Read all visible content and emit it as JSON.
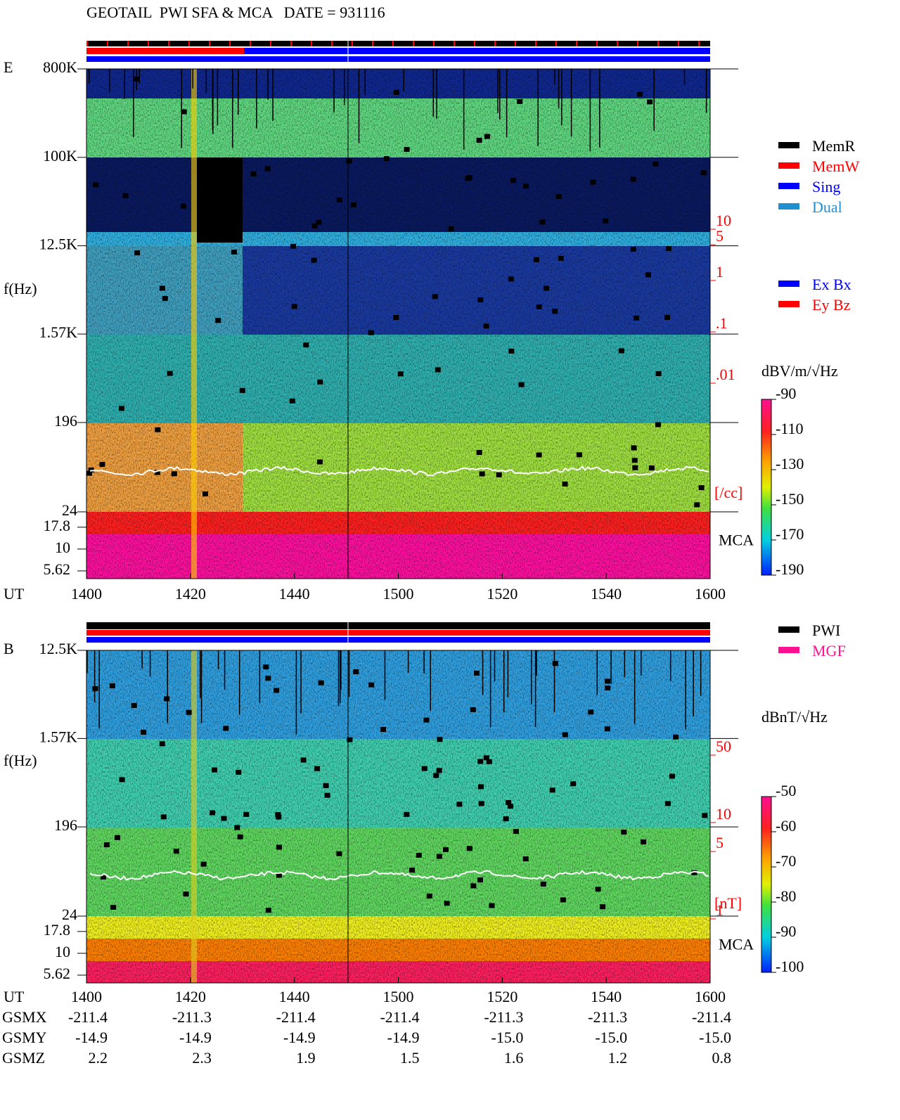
{
  "chart_data": [
    {
      "type": "spectrogram",
      "title": "GEOTAIL  PWI SFA & MCA   DATE = 931116",
      "panel_label": "E",
      "ylabel": "f(Hz)",
      "log_scale": true,
      "ylim": [
        24,
        800000
      ],
      "yticks": [
        {
          "value": 800000,
          "label": "800K"
        },
        {
          "value": 100000,
          "label": "100K"
        },
        {
          "value": 12500,
          "label": "12.5K"
        },
        {
          "value": 1570,
          "label": "1.57K"
        },
        196,
        24
      ],
      "mca_label": "MCA",
      "mca_ylim": [
        4.58,
        26.7
      ],
      "mca_yticks": [
        17.8,
        10,
        5.62
      ],
      "y2label": "[/cc]",
      "y2lim": [
        0.01,
        10
      ],
      "y2ticks": [
        10,
        5,
        1,
        {
          "value": 0.1,
          "label": ".1"
        },
        {
          "value": 0.01,
          "label": ".01"
        }
      ],
      "y2color": "#ff0000",
      "xlabel": "UT",
      "x_tick_labels": [
        "1400",
        "1420",
        "1440",
        "1500",
        "1520",
        "1540",
        "1600"
      ],
      "legend": [
        {
          "name": "MemR",
          "color": "#000000"
        },
        {
          "name": "MemW",
          "color": "#ff0000"
        },
        {
          "name": "Sing",
          "color": "#0000ff"
        },
        {
          "name": "Dual",
          "color": "#2090d0"
        }
      ],
      "legend2": [
        {
          "name": "Ex Bx",
          "color": "#0000ff"
        },
        {
          "name": "Ey Bz",
          "color": "#ff0000"
        }
      ],
      "colorbar": {
        "label": "dBV/m/√Hz",
        "lim": [
          -190,
          -90
        ],
        "ticks": [
          -90,
          -110,
          -130,
          -150,
          -170,
          -190
        ]
      }
    },
    {
      "type": "spectrogram",
      "panel_label": "B",
      "ylabel": "f(Hz)",
      "log_scale": true,
      "ylim": [
        24,
        12500
      ],
      "yticks": [
        {
          "value": 12500,
          "label": "12.5K"
        },
        {
          "value": 1570,
          "label": "1.57K"
        },
        196,
        24
      ],
      "mca_label": "MCA",
      "mca_ylim": [
        4.58,
        26.7
      ],
      "mca_yticks": [
        17.8,
        10,
        5.62
      ],
      "y2label": "[nT]",
      "y2lim": [
        1,
        50
      ],
      "y2ticks": [
        50,
        10,
        5,
        1
      ],
      "y2color": "#ff0000",
      "xlabel": "UT",
      "x_tick_labels": [
        "1400",
        "1420",
        "1440",
        "1500",
        "1520",
        "1540",
        "1600"
      ],
      "legend": [
        {
          "name": "PWI",
          "color": "#000000"
        },
        {
          "name": "MGF",
          "color": "#ff1090"
        }
      ],
      "colorbar": {
        "label": "dBnT/√Hz",
        "lim": [
          -100,
          -50
        ],
        "ticks": [
          -50,
          -60,
          -70,
          -80,
          -90,
          -100
        ]
      },
      "rows": [
        {
          "name": "GSMX",
          "values": [
            "-211.4",
            "-211.3",
            "-211.4",
            "-211.4",
            "-211.3",
            "-211.3",
            "-211.4"
          ]
        },
        {
          "name": "GSMY",
          "values": [
            "-14.9",
            "-14.9",
            "-14.9",
            "-14.9",
            "-15.0",
            "-15.0",
            "-15.0"
          ]
        },
        {
          "name": "GSMZ",
          "values": [
            "2.2",
            "2.3",
            "1.9",
            "1.5",
            "1.6",
            "1.2",
            "0.8"
          ]
        }
      ]
    }
  ]
}
